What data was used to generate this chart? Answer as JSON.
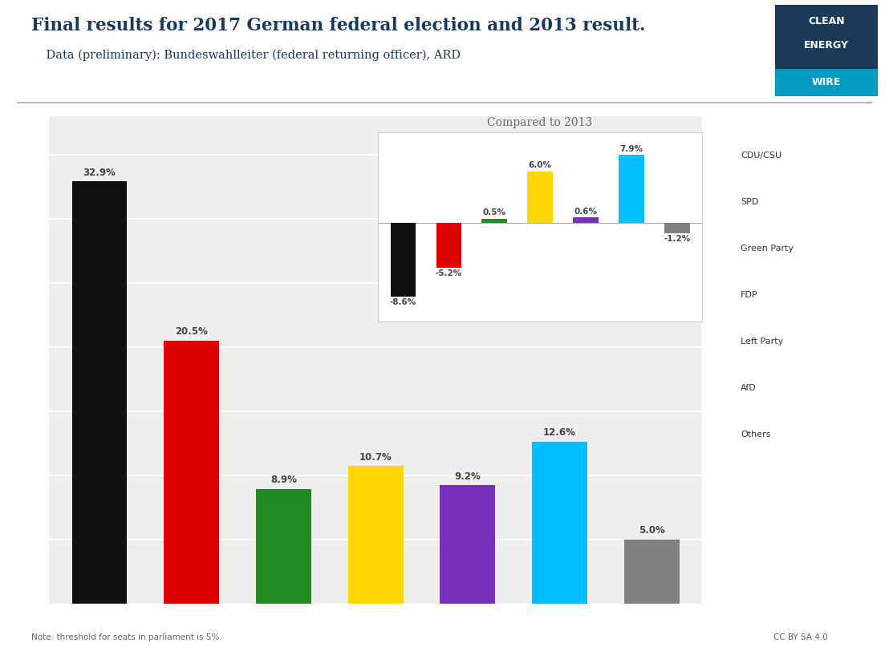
{
  "title": "Final results for 2017 German federal election and 2013 result.",
  "subtitle": "    Data (preliminary): Bundeswahlleiter (federal returning officer), ARD",
  "title_color": "#1a3a5c",
  "note": "Note: threshold for seats in parliament is 5%.",
  "cc_text": "©© BY SA 4.0",
  "parties": [
    "CDU/CSU",
    "SPD",
    "Green Party",
    "FDP",
    "Left Party",
    "AfD",
    "Others"
  ],
  "values_2017": [
    32.9,
    20.5,
    8.9,
    10.7,
    9.2,
    12.6,
    5.0
  ],
  "values_change": [
    -8.6,
    -5.2,
    0.5,
    6.0,
    0.6,
    7.9,
    -1.2
  ],
  "bar_colors": [
    "#111111",
    "#dd0000",
    "#228B22",
    "#FFD700",
    "#7B2FBE",
    "#00BFFF",
    "#808080"
  ],
  "bg_color": "#eeeeee",
  "outer_bg_color": "#ffffff",
  "inset_bg_color": "#ffffff",
  "inset_title": "Compared to 2013",
  "legend_labels": [
    "CDU/CSU",
    "SPD",
    "Green Party",
    "FDP",
    "Left Party",
    "AfD",
    "Others"
  ]
}
